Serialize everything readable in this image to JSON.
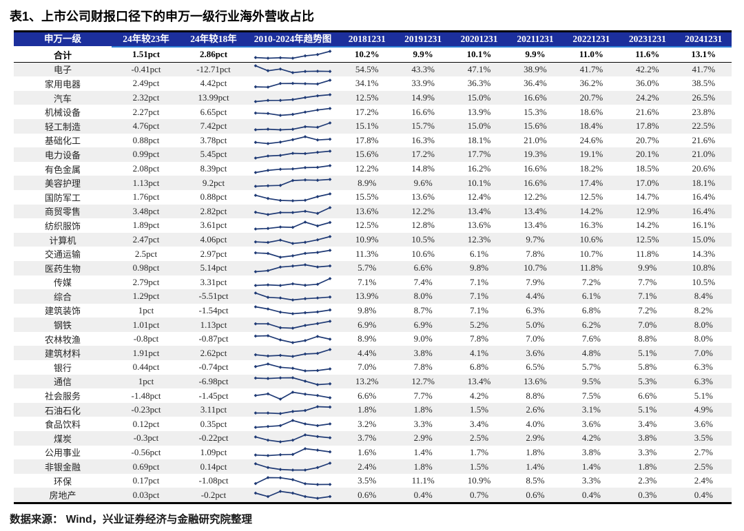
{
  "title": "表1、上市公司财报口径下的申万一级行业海外营收占比",
  "source_note": "数据来源：  Wind，兴业证券经济与金融研究院整理",
  "colors": {
    "header_bg": "#1c2f9c",
    "header_underline": "#2d7fd4",
    "sparkline": "#1f3a75",
    "stripe": "#efefef",
    "border": "#000000"
  },
  "chart_data": {
    "type": "table",
    "title": "表1、上市公司财报口径下的申万一级行业海外营收占比",
    "columns": [
      "申万一级",
      "24年较23年",
      "24年较18年",
      "2010-2024年趋势图",
      "20181231",
      "20191231",
      "20201231",
      "20211231",
      "20221231",
      "20231231",
      "20241231"
    ],
    "sparkline_label": "2010-2024年趋势图",
    "total": {
      "name": "合计",
      "chg_vs_2023": "1.51pct",
      "chg_vs_2018": "2.86pct",
      "yearly": [
        "10.2%",
        "9.9%",
        "10.1%",
        "9.9%",
        "11.0%",
        "11.6%",
        "13.1%"
      ]
    },
    "rows": [
      {
        "name": "电子",
        "chg_vs_2023": "-0.41pct",
        "chg_vs_2018": "-12.71pct",
        "yearly": [
          "54.5%",
          "43.3%",
          "47.1%",
          "38.9%",
          "41.7%",
          "42.2%",
          "41.7%"
        ]
      },
      {
        "name": "家用电器",
        "chg_vs_2023": "2.49pct",
        "chg_vs_2018": "4.42pct",
        "yearly": [
          "34.1%",
          "33.9%",
          "36.3%",
          "36.4%",
          "36.2%",
          "36.0%",
          "38.5%"
        ]
      },
      {
        "name": "汽车",
        "chg_vs_2023": "2.32pct",
        "chg_vs_2018": "13.99pct",
        "yearly": [
          "12.5%",
          "14.9%",
          "15.0%",
          "16.6%",
          "20.7%",
          "24.2%",
          "26.5%"
        ]
      },
      {
        "name": "机械设备",
        "chg_vs_2023": "2.27pct",
        "chg_vs_2018": "6.65pct",
        "yearly": [
          "17.2%",
          "16.6%",
          "13.9%",
          "15.3%",
          "18.6%",
          "21.6%",
          "23.8%"
        ]
      },
      {
        "name": "轻工制造",
        "chg_vs_2023": "4.76pct",
        "chg_vs_2018": "7.42pct",
        "yearly": [
          "15.1%",
          "15.7%",
          "15.0%",
          "15.6%",
          "18.4%",
          "17.8%",
          "22.5%"
        ]
      },
      {
        "name": "基础化工",
        "chg_vs_2023": "0.88pct",
        "chg_vs_2018": "3.78pct",
        "yearly": [
          "17.8%",
          "16.3%",
          "18.1%",
          "21.0%",
          "24.6%",
          "20.7%",
          "21.6%"
        ]
      },
      {
        "name": "电力设备",
        "chg_vs_2023": "0.99pct",
        "chg_vs_2018": "5.45pct",
        "yearly": [
          "15.6%",
          "17.2%",
          "17.7%",
          "19.3%",
          "19.1%",
          "20.1%",
          "21.0%"
        ]
      },
      {
        "name": "有色金属",
        "chg_vs_2023": "2.08pct",
        "chg_vs_2018": "8.39pct",
        "yearly": [
          "12.2%",
          "14.8%",
          "16.2%",
          "16.6%",
          "18.2%",
          "18.5%",
          "20.6%"
        ]
      },
      {
        "name": "美容护理",
        "chg_vs_2023": "1.13pct",
        "chg_vs_2018": "9.2pct",
        "yearly": [
          "8.9%",
          "9.6%",
          "10.1%",
          "16.6%",
          "17.4%",
          "17.0%",
          "18.1%"
        ]
      },
      {
        "name": "国防军工",
        "chg_vs_2023": "1.76pct",
        "chg_vs_2018": "0.88pct",
        "yearly": [
          "15.5%",
          "13.6%",
          "12.4%",
          "12.2%",
          "12.5%",
          "14.7%",
          "16.4%"
        ]
      },
      {
        "name": "商贸零售",
        "chg_vs_2023": "3.48pct",
        "chg_vs_2018": "2.82pct",
        "yearly": [
          "13.6%",
          "12.2%",
          "13.4%",
          "13.4%",
          "14.2%",
          "12.9%",
          "16.4%"
        ]
      },
      {
        "name": "纺织服饰",
        "chg_vs_2023": "1.89pct",
        "chg_vs_2018": "3.61pct",
        "yearly": [
          "12.5%",
          "12.8%",
          "13.6%",
          "13.4%",
          "16.3%",
          "14.2%",
          "16.1%"
        ]
      },
      {
        "name": "计算机",
        "chg_vs_2023": "2.47pct",
        "chg_vs_2018": "4.06pct",
        "yearly": [
          "10.9%",
          "10.5%",
          "12.3%",
          "9.7%",
          "10.6%",
          "12.5%",
          "15.0%"
        ]
      },
      {
        "name": "交通运输",
        "chg_vs_2023": "2.5pct",
        "chg_vs_2018": "2.97pct",
        "yearly": [
          "11.3%",
          "10.6%",
          "6.1%",
          "7.8%",
          "10.7%",
          "11.8%",
          "14.3%"
        ]
      },
      {
        "name": "医药生物",
        "chg_vs_2023": "0.98pct",
        "chg_vs_2018": "5.14pct",
        "yearly": [
          "5.7%",
          "6.6%",
          "9.8%",
          "10.7%",
          "11.8%",
          "9.9%",
          "10.8%"
        ]
      },
      {
        "name": "传媒",
        "chg_vs_2023": "2.79pct",
        "chg_vs_2018": "3.31pct",
        "yearly": [
          "7.1%",
          "7.4%",
          "7.1%",
          "7.9%",
          "7.2%",
          "7.7%",
          "10.5%"
        ]
      },
      {
        "name": "综合",
        "chg_vs_2023": "1.29pct",
        "chg_vs_2018": "-5.51pct",
        "yearly": [
          "13.9%",
          "8.0%",
          "7.1%",
          "4.4%",
          "6.1%",
          "7.1%",
          "8.4%"
        ]
      },
      {
        "name": "建筑装饰",
        "chg_vs_2023": "1pct",
        "chg_vs_2018": "-1.54pct",
        "yearly": [
          "9.8%",
          "8.7%",
          "7.1%",
          "6.3%",
          "6.8%",
          "7.2%",
          "8.2%"
        ]
      },
      {
        "name": "钢铁",
        "chg_vs_2023": "1.01pct",
        "chg_vs_2018": "1.13pct",
        "yearly": [
          "6.9%",
          "6.9%",
          "5.2%",
          "5.0%",
          "6.2%",
          "7.0%",
          "8.0%"
        ]
      },
      {
        "name": "农林牧渔",
        "chg_vs_2023": "-0.8pct",
        "chg_vs_2018": "-0.87pct",
        "yearly": [
          "8.9%",
          "9.0%",
          "7.8%",
          "7.0%",
          "7.6%",
          "8.8%",
          "8.0%"
        ]
      },
      {
        "name": "建筑材料",
        "chg_vs_2023": "1.91pct",
        "chg_vs_2018": "2.62pct",
        "yearly": [
          "4.4%",
          "3.8%",
          "4.1%",
          "3.6%",
          "4.8%",
          "5.1%",
          "7.0%"
        ]
      },
      {
        "name": "银行",
        "chg_vs_2023": "0.44pct",
        "chg_vs_2018": "-0.74pct",
        "yearly": [
          "7.0%",
          "7.8%",
          "6.8%",
          "6.5%",
          "5.7%",
          "5.8%",
          "6.3%"
        ]
      },
      {
        "name": "通信",
        "chg_vs_2023": "1pct",
        "chg_vs_2018": "-6.98pct",
        "yearly": [
          "13.2%",
          "12.7%",
          "13.4%",
          "13.6%",
          "9.5%",
          "5.3%",
          "6.3%"
        ]
      },
      {
        "name": "社会服务",
        "chg_vs_2023": "-1.48pct",
        "chg_vs_2018": "-1.45pct",
        "yearly": [
          "6.6%",
          "7.7%",
          "4.2%",
          "8.8%",
          "7.5%",
          "6.6%",
          "5.1%"
        ]
      },
      {
        "name": "石油石化",
        "chg_vs_2023": "-0.23pct",
        "chg_vs_2018": "3.11pct",
        "yearly": [
          "1.8%",
          "1.8%",
          "1.5%",
          "2.6%",
          "3.1%",
          "5.1%",
          "4.9%"
        ]
      },
      {
        "name": "食品饮料",
        "chg_vs_2023": "0.12pct",
        "chg_vs_2018": "0.35pct",
        "yearly": [
          "3.2%",
          "3.3%",
          "3.4%",
          "4.0%",
          "3.6%",
          "3.4%",
          "3.6%"
        ]
      },
      {
        "name": "煤炭",
        "chg_vs_2023": "-0.3pct",
        "chg_vs_2018": "-0.22pct",
        "yearly": [
          "3.7%",
          "2.9%",
          "2.5%",
          "2.9%",
          "4.2%",
          "3.8%",
          "3.5%"
        ]
      },
      {
        "name": "公用事业",
        "chg_vs_2023": "-0.56pct",
        "chg_vs_2018": "1.09pct",
        "yearly": [
          "1.6%",
          "1.4%",
          "1.7%",
          "1.8%",
          "3.8%",
          "3.3%",
          "2.7%"
        ]
      },
      {
        "name": "非银金融",
        "chg_vs_2023": "0.69pct",
        "chg_vs_2018": "0.14pct",
        "yearly": [
          "2.4%",
          "1.8%",
          "1.5%",
          "1.4%",
          "1.4%",
          "1.8%",
          "2.5%"
        ]
      },
      {
        "name": "环保",
        "chg_vs_2023": "0.17pct",
        "chg_vs_2018": "-1.08pct",
        "yearly": [
          "3.5%",
          "11.1%",
          "10.9%",
          "8.5%",
          "3.3%",
          "2.3%",
          "2.4%"
        ]
      },
      {
        "name": "房地产",
        "chg_vs_2023": "0.03pct",
        "chg_vs_2018": "-0.2pct",
        "yearly": [
          "0.6%",
          "0.4%",
          "0.7%",
          "0.6%",
          "0.4%",
          "0.3%",
          "0.4%"
        ]
      }
    ]
  }
}
